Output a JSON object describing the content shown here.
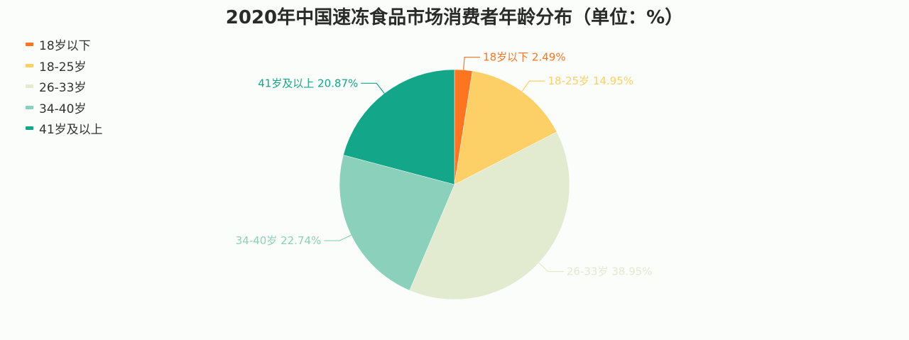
{
  "chart_data": {
    "type": "pie",
    "title": "2020年中国速冻食品市场消费者年龄分布（单位：%）",
    "categories": [
      "18岁以下",
      "18-25岁",
      "26-33岁",
      "34-40岁",
      "41岁及以上"
    ],
    "values": [
      2.49,
      14.95,
      38.95,
      22.74,
      20.87
    ],
    "labels": [
      "18岁以下 2.49%",
      "18-25岁 14.95%",
      "26-33岁 38.95%",
      "34-40岁 22.74%",
      "41岁及以上 20.87%"
    ],
    "colors": [
      "#fd7520",
      "#fcd066",
      "#e2ead0",
      "#8bd0bb",
      "#13a689"
    ],
    "legend_position": "top-left"
  }
}
